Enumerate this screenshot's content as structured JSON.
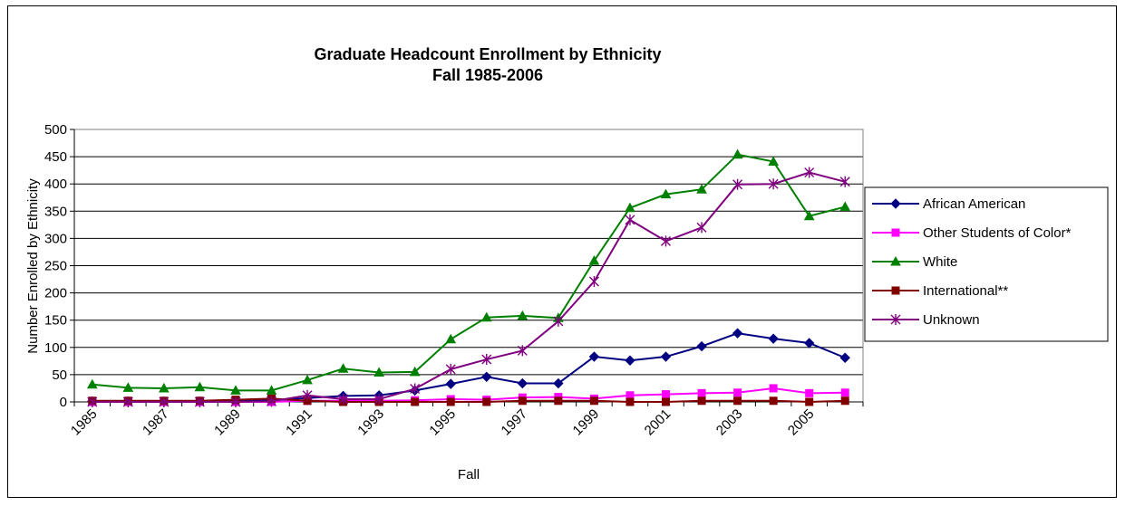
{
  "chart_data": {
    "type": "line",
    "title": "Graduate Headcount Enrollment by Ethnicity",
    "subtitle": "Fall 1985-2006",
    "xlabel": "Fall",
    "ylabel": "Number Enrolled by Ethnicity",
    "ylim": [
      0,
      500
    ],
    "yticks": [
      "0",
      "50",
      "100",
      "150",
      "200",
      "250",
      "300",
      "350",
      "400",
      "450",
      "500"
    ],
    "x": [
      1985,
      1986,
      1987,
      1988,
      1989,
      1990,
      1991,
      1992,
      1993,
      1994,
      1995,
      1996,
      1997,
      1998,
      1999,
      2000,
      2001,
      2002,
      2003,
      2004,
      2005,
      2006
    ],
    "xtick_labels": [
      "1985",
      "1987",
      "1989",
      "1991",
      "1993",
      "1995",
      "1997",
      "1999",
      "2001",
      "2003",
      "2005"
    ],
    "grid": "horizontal",
    "legend_position": "right",
    "series": [
      {
        "name": "African American",
        "color": "#000080",
        "marker": "diamond",
        "values": [
          1,
          1,
          1,
          1,
          2,
          3,
          7,
          11,
          12,
          21,
          33,
          46,
          34,
          34,
          83,
          76,
          83,
          102,
          126,
          116,
          108,
          81
        ]
      },
      {
        "name": "Other Students of Color*",
        "color": "#FF00FF",
        "marker": "square",
        "values": [
          0,
          0,
          0,
          0,
          0,
          0,
          2,
          2,
          2,
          3,
          5,
          4,
          8,
          9,
          6,
          12,
          14,
          16,
          17,
          25,
          16,
          17
        ]
      },
      {
        "name": "White",
        "color": "#008000",
        "marker": "triangle",
        "values": [
          32,
          26,
          25,
          27,
          21,
          21,
          40,
          61,
          54,
          55,
          115,
          155,
          158,
          154,
          259,
          356,
          381,
          390,
          454,
          441,
          341,
          358
        ]
      },
      {
        "name": "International**",
        "color": "#800000",
        "marker": "square",
        "values": [
          2,
          2,
          2,
          2,
          4,
          6,
          2,
          0,
          0,
          0,
          0,
          0,
          2,
          2,
          2,
          0,
          0,
          2,
          2,
          2,
          0,
          2
        ]
      },
      {
        "name": "Unknown",
        "color": "#800080",
        "marker": "star",
        "values": [
          0,
          0,
          0,
          0,
          0,
          1,
          12,
          5,
          5,
          24,
          60,
          78,
          94,
          148,
          221,
          334,
          295,
          320,
          399,
          400,
          421,
          404
        ]
      }
    ]
  }
}
